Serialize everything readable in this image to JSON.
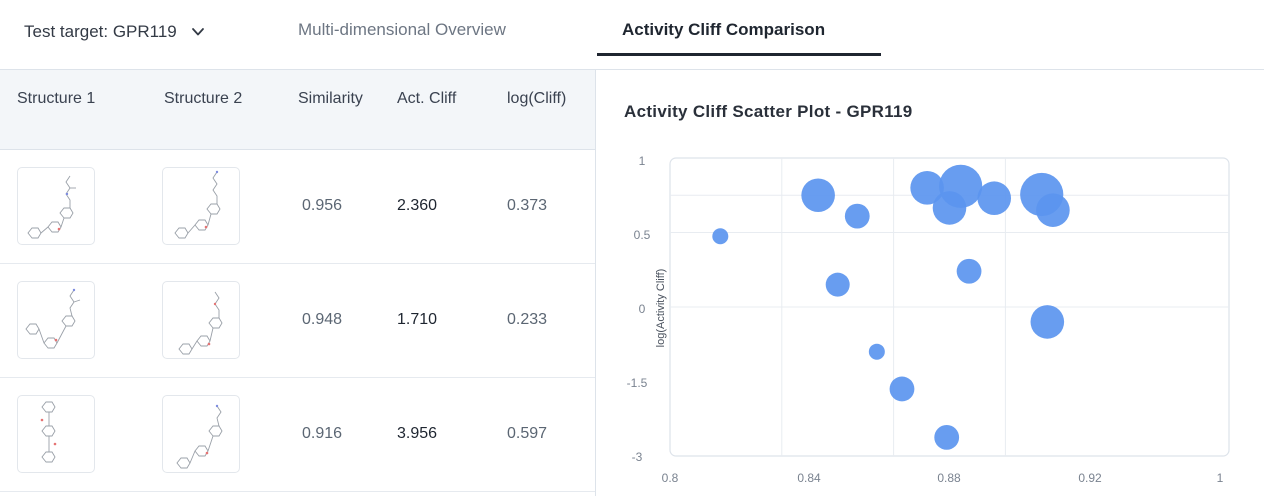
{
  "header": {
    "target_label": "Test target: GPR119",
    "tabs": [
      {
        "label": "Multi-dimensional Overview",
        "active": false
      },
      {
        "label": "Activity Cliff Comparison",
        "active": true
      }
    ]
  },
  "table": {
    "columns": [
      "Structure 1",
      "Structure 2",
      "Similarity",
      "Act. Cliff",
      "log(Cliff)"
    ],
    "rows": [
      {
        "similarity": "0.956",
        "act_cliff": "2.360",
        "log_cliff": "0.373"
      },
      {
        "similarity": "0.948",
        "act_cliff": "1.710",
        "log_cliff": "0.233"
      },
      {
        "similarity": "0.916",
        "act_cliff": "3.956",
        "log_cliff": "0.597"
      }
    ]
  },
  "chart": {
    "title": "Activity Cliff Scatter Plot - GPR119",
    "ylabel": "log(Activity Cliff)"
  },
  "chart_data": {
    "type": "scatter",
    "title": "Activity Cliff Scatter Plot - GPR119",
    "xlabel": "",
    "ylabel": "log(Activity Cliff)",
    "xlim": [
      0.8,
      1
    ],
    "ylim": [
      -3,
      1
    ],
    "x_ticks": [
      "0.8",
      "0.84",
      "0.88",
      "0.92",
      "1"
    ],
    "y_ticks": [
      "1",
      "0.5",
      "0",
      "-1.5",
      "-3"
    ],
    "grid": true,
    "bubble_color": "#5b95ef",
    "points": [
      {
        "x": 0.818,
        "y": -0.05,
        "size": 1.0
      },
      {
        "x": 0.853,
        "y": 0.5,
        "size": 2.1
      },
      {
        "x": 0.86,
        "y": -0.7,
        "size": 1.5
      },
      {
        "x": 0.867,
        "y": 0.22,
        "size": 1.55
      },
      {
        "x": 0.874,
        "y": -1.6,
        "size": 1.0
      },
      {
        "x": 0.883,
        "y": -2.1,
        "size": 1.55
      },
      {
        "x": 0.892,
        "y": 0.6,
        "size": 2.1
      },
      {
        "x": 0.899,
        "y": -2.75,
        "size": 1.55
      },
      {
        "x": 0.9,
        "y": 0.33,
        "size": 2.1
      },
      {
        "x": 0.904,
        "y": 0.62,
        "size": 2.7
      },
      {
        "x": 0.907,
        "y": -0.52,
        "size": 1.55
      },
      {
        "x": 0.916,
        "y": 0.46,
        "size": 2.1
      },
      {
        "x": 0.933,
        "y": 0.51,
        "size": 2.7
      },
      {
        "x": 0.935,
        "y": -1.2,
        "size": 2.1
      },
      {
        "x": 0.937,
        "y": 0.3,
        "size": 2.1
      }
    ]
  }
}
